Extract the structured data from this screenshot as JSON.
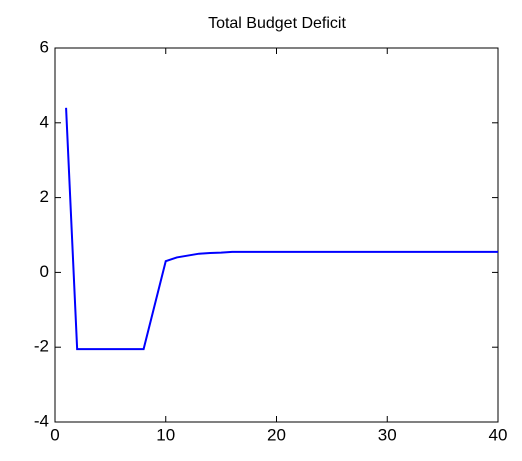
{
  "chart_data": {
    "type": "line",
    "title": "Total Budget Deficit",
    "x": [
      1,
      2,
      8,
      10,
      11,
      12,
      13,
      14,
      15,
      16,
      40
    ],
    "series": [
      {
        "color": "#0000ff",
        "values": [
          4.4,
          -2.05,
          -2.05,
          0.3,
          0.4,
          0.45,
          0.5,
          0.52,
          0.53,
          0.55,
          0.55
        ]
      }
    ],
    "xlim": [
      0,
      40
    ],
    "xticks": [
      0,
      10,
      20,
      30,
      40
    ],
    "ylim": [
      -4,
      6
    ],
    "yticks": [
      -4,
      -2,
      0,
      2,
      4,
      6
    ],
    "grid": false
  }
}
